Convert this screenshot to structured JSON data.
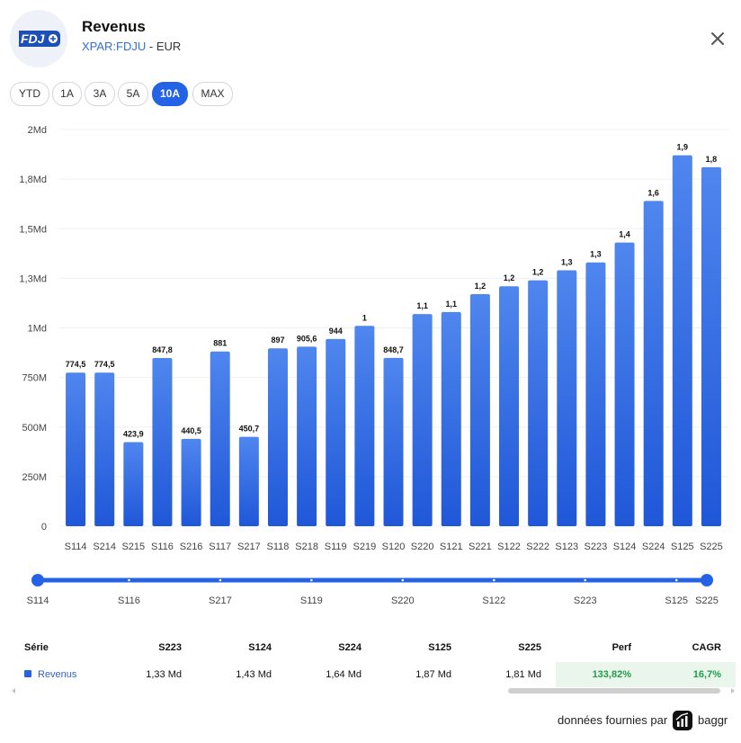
{
  "header": {
    "title": "Revenus",
    "ticker": "XPAR:FDJU",
    "currency_sep": " - ",
    "currency": "EUR",
    "logo_text": "FDJ"
  },
  "ranges": [
    {
      "label": "YTD",
      "active": false
    },
    {
      "label": "1A",
      "active": false
    },
    {
      "label": "3A",
      "active": false
    },
    {
      "label": "5A",
      "active": false
    },
    {
      "label": "10A",
      "active": true
    },
    {
      "label": "MAX",
      "active": false
    }
  ],
  "colors": {
    "accent": "#2563e6",
    "bar_top": "#4f86ee",
    "bar_bottom": "#1f57d8",
    "perf_green": "#1e9e4a"
  },
  "chart_data": {
    "type": "bar",
    "title": "Revenus",
    "xlabel": "",
    "ylabel": "",
    "ylim": [
      0,
      2000
    ],
    "unit": "M EUR",
    "yticks": [
      {
        "value": 0,
        "label": "0"
      },
      {
        "value": 250,
        "label": "250M"
      },
      {
        "value": 500,
        "label": "500M"
      },
      {
        "value": 750,
        "label": "750M"
      },
      {
        "value": 1000,
        "label": "1Md"
      },
      {
        "value": 1250,
        "label": "1,3Md"
      },
      {
        "value": 1500,
        "label": "1,5Md"
      },
      {
        "value": 1750,
        "label": "1,8Md"
      },
      {
        "value": 2000,
        "label": "2Md"
      }
    ],
    "categories": [
      "S114",
      "S214",
      "S215",
      "S116",
      "S216",
      "S117",
      "S217",
      "S118",
      "S218",
      "S119",
      "S219",
      "S120",
      "S220",
      "S121",
      "S221",
      "S122",
      "S222",
      "S123",
      "S223",
      "S124",
      "S224",
      "S125",
      "S225"
    ],
    "values": [
      774.5,
      774.5,
      423.9,
      847.8,
      440.5,
      881,
      450.7,
      897,
      905.6,
      944,
      1010,
      848.7,
      1070,
      1080,
      1170,
      1210,
      1240,
      1290,
      1330,
      1430,
      1640,
      1870,
      1810
    ],
    "data_labels": [
      "774,5",
      "774,5",
      "423,9",
      "847,8",
      "440,5",
      "881",
      "450,7",
      "897",
      "905,6",
      "944",
      "1",
      "848,7",
      "1,1",
      "1,1",
      "1,2",
      "1,2",
      "1,2",
      "1,3",
      "1,3",
      "1,4",
      "1,6",
      "1,9",
      "1,8"
    ],
    "grid": true,
    "legend": "none"
  },
  "slider": {
    "labels": [
      "S114",
      "S116",
      "S217",
      "S119",
      "S220",
      "S122",
      "S223",
      "S125",
      "S225"
    ],
    "range_start": "S114",
    "range_end": "S225"
  },
  "table": {
    "headers": [
      "Série",
      "S223",
      "S124",
      "S224",
      "S125",
      "S225",
      "Perf",
      "CAGR"
    ],
    "rows": [
      {
        "name": "Revenus",
        "values": [
          "1,33 Md",
          "1,43 Md",
          "1,64 Md",
          "1,87 Md",
          "1,81 Md"
        ],
        "perf": "133,82%",
        "cagr": "16,7%"
      }
    ]
  },
  "footer": {
    "text": "données fournies par",
    "brand": "baggr"
  }
}
